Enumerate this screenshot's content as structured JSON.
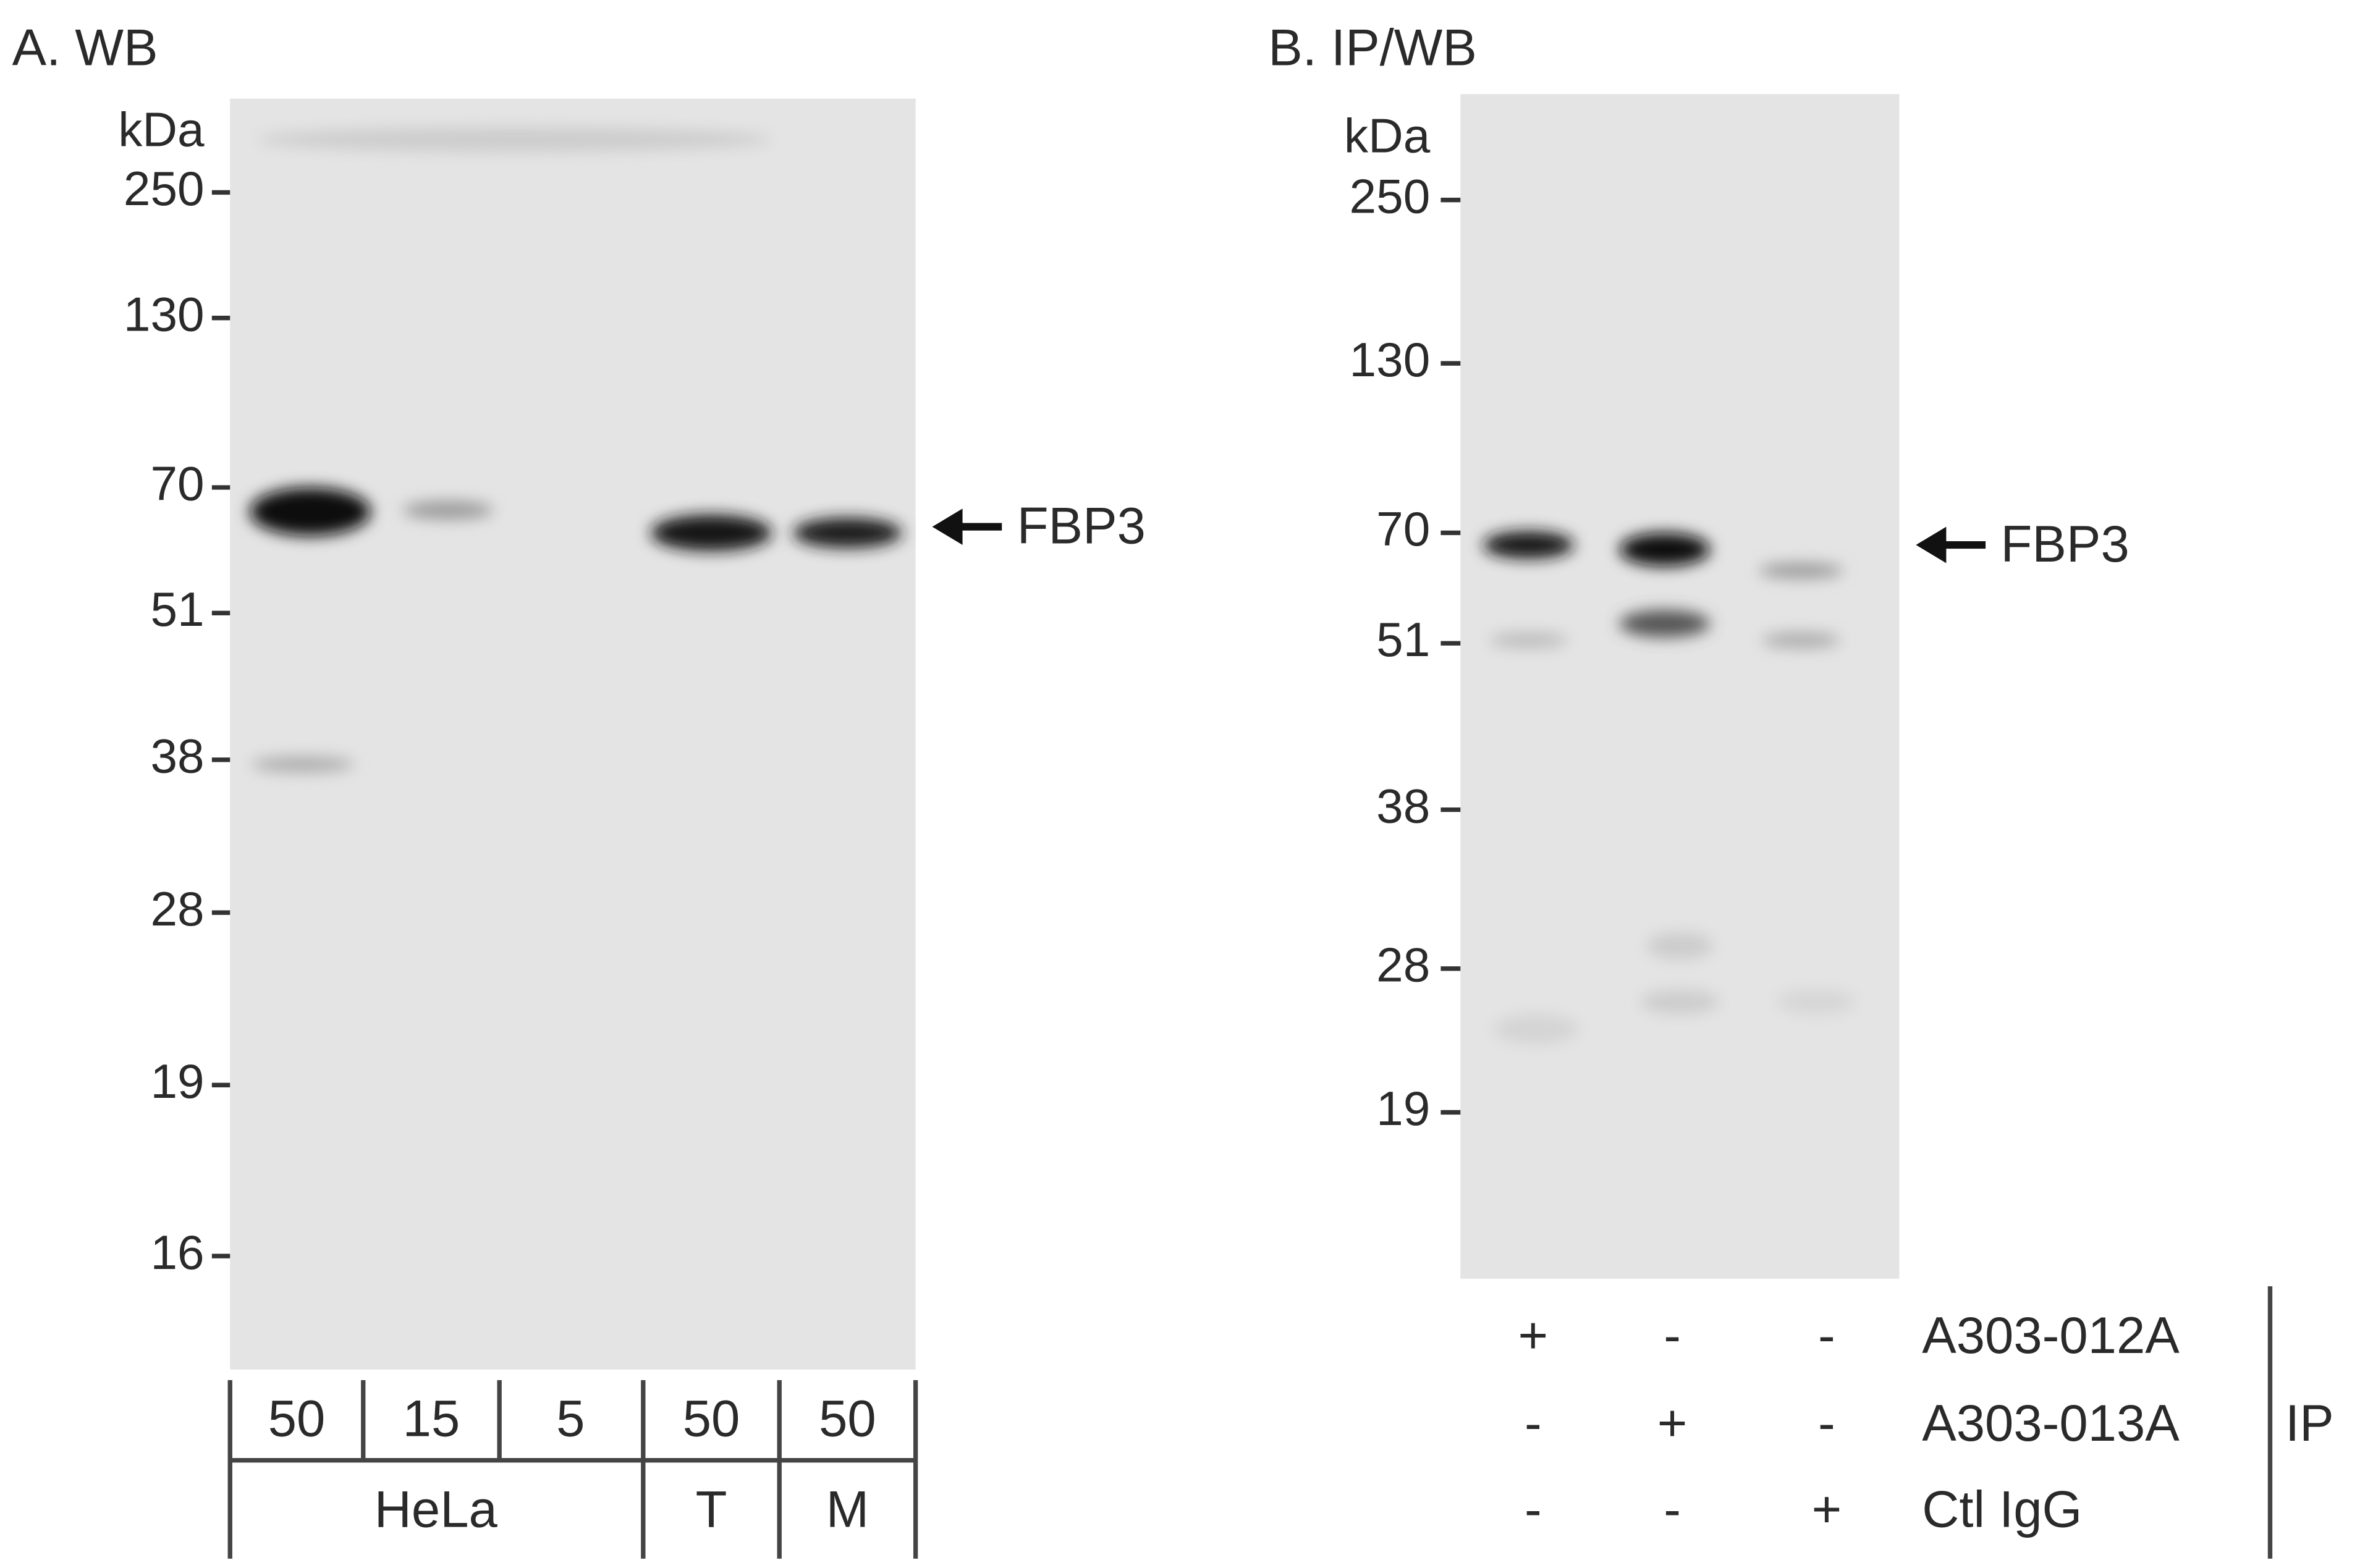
{
  "panels": [
    {
      "label": "A. WB",
      "unit": "kDa",
      "markers": [
        "250",
        "130",
        "70",
        "51",
        "38",
        "28",
        "19",
        "16"
      ],
      "lanes": [
        "50",
        "15",
        "5",
        "50",
        "50"
      ],
      "groups": [
        "HeLa",
        "T",
        "M"
      ],
      "target": "FBP3"
    },
    {
      "label": "B. IP/WB",
      "unit": "kDa",
      "markers": [
        "250",
        "130",
        "70",
        "51",
        "38",
        "28",
        "19"
      ],
      "rows": [
        {
          "label": "A303-012A",
          "signs": [
            "+",
            "-",
            "-"
          ]
        },
        {
          "label": "A303-013A",
          "signs": [
            "-",
            "+",
            "-"
          ]
        },
        {
          "label": "Ctl IgG",
          "signs": [
            "-",
            "-",
            "+"
          ]
        }
      ],
      "ip_label": "IP",
      "target": "FBP3"
    }
  ]
}
